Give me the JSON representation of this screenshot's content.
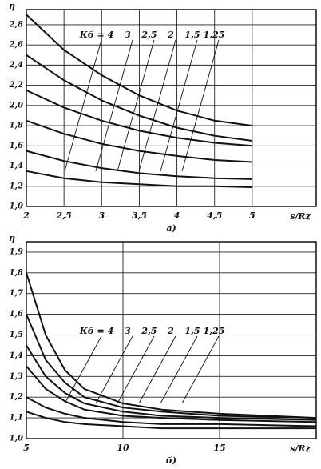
{
  "chart_data": [
    {
      "type": "line",
      "subtitle": "а)",
      "y_label": "η",
      "x_label": "s/Rz",
      "x": [
        2,
        2.5,
        3,
        3.5,
        4,
        4.5,
        5
      ],
      "xlim": [
        2,
        5.85
      ],
      "ylim": [
        1.0,
        2.95
      ],
      "xticks": [
        2,
        {
          "value": 2.5,
          "label": "2,5"
        },
        3,
        {
          "value": 3.5,
          "label": "3,5"
        },
        4,
        {
          "value": 4.5,
          "label": "4,5"
        },
        5
      ],
      "yticks": [
        {
          "value": 1.0,
          "label": "1,0"
        },
        {
          "value": 1.2,
          "label": "1,2"
        },
        {
          "value": 1.4,
          "label": "1,4"
        },
        {
          "value": 1.6,
          "label": "1,6"
        },
        {
          "value": 1.8,
          "label": "1,8"
        },
        {
          "value": 2.0,
          "label": "2,0"
        },
        {
          "value": 2.2,
          "label": "2,2"
        },
        {
          "value": 2.4,
          "label": "2,4"
        },
        {
          "value": 2.6,
          "label": "2,6"
        },
        {
          "value": 2.8,
          "label": "2,8"
        }
      ],
      "grid": true,
      "series": [
        {
          "name": "Кб = 4",
          "color": "#111111",
          "values": [
            2.9,
            2.55,
            2.3,
            2.1,
            1.95,
            1.85,
            1.8
          ]
        },
        {
          "name": "3",
          "color": "#111111",
          "values": [
            2.5,
            2.25,
            2.05,
            1.9,
            1.78,
            1.7,
            1.65
          ]
        },
        {
          "name": "2,5",
          "color": "#111111",
          "values": [
            2.15,
            1.98,
            1.85,
            1.75,
            1.68,
            1.63,
            1.6
          ]
        },
        {
          "name": "2",
          "color": "#111111",
          "values": [
            1.85,
            1.72,
            1.62,
            1.55,
            1.5,
            1.46,
            1.44
          ]
        },
        {
          "name": "1,5",
          "color": "#111111",
          "values": [
            1.55,
            1.45,
            1.38,
            1.33,
            1.3,
            1.28,
            1.27
          ]
        },
        {
          "name": "1,25",
          "color": "#111111",
          "values": [
            1.35,
            1.28,
            1.24,
            1.22,
            1.2,
            1.2,
            1.19
          ]
        }
      ]
    },
    {
      "type": "line",
      "subtitle": "б)",
      "y_label": "η",
      "x_label": "s/Rz",
      "x": [
        5,
        6,
        7,
        8,
        10,
        12,
        15,
        20
      ],
      "xlim": [
        5,
        20
      ],
      "ylim": [
        1.0,
        1.95
      ],
      "xticks": [
        5,
        10,
        15
      ],
      "yticks": [
        {
          "value": 1.0,
          "label": "1,0"
        },
        {
          "value": 1.1,
          "label": "1,1"
        },
        {
          "value": 1.2,
          "label": "1,2"
        },
        {
          "value": 1.3,
          "label": "1,3"
        },
        {
          "value": 1.4,
          "label": "1,4"
        },
        {
          "value": 1.5,
          "label": "1,5"
        },
        {
          "value": 1.6,
          "label": "1,6"
        },
        {
          "value": 1.7,
          "label": "1,7"
        },
        {
          "value": 1.8,
          "label": "1,8"
        },
        {
          "value": 1.9,
          "label": "1,9"
        }
      ],
      "grid": true,
      "series": [
        {
          "name": "Кб = 4",
          "color": "#111111",
          "values": [
            1.8,
            1.5,
            1.33,
            1.24,
            1.17,
            1.14,
            1.12,
            1.1
          ]
        },
        {
          "name": "3",
          "color": "#111111",
          "values": [
            1.6,
            1.38,
            1.27,
            1.2,
            1.15,
            1.13,
            1.11,
            1.1
          ]
        },
        {
          "name": "2,5",
          "color": "#111111",
          "values": [
            1.45,
            1.3,
            1.22,
            1.17,
            1.13,
            1.11,
            1.1,
            1.09
          ]
        },
        {
          "name": "2",
          "color": "#111111",
          "values": [
            1.35,
            1.24,
            1.18,
            1.14,
            1.11,
            1.1,
            1.09,
            1.08
          ]
        },
        {
          "name": "1,5",
          "color": "#111111",
          "values": [
            1.2,
            1.15,
            1.12,
            1.1,
            1.08,
            1.07,
            1.07,
            1.06
          ]
        },
        {
          "name": "1,25",
          "color": "#111111",
          "values": [
            1.13,
            1.1,
            1.08,
            1.07,
            1.06,
            1.05,
            1.05,
            1.05
          ]
        }
      ]
    }
  ]
}
